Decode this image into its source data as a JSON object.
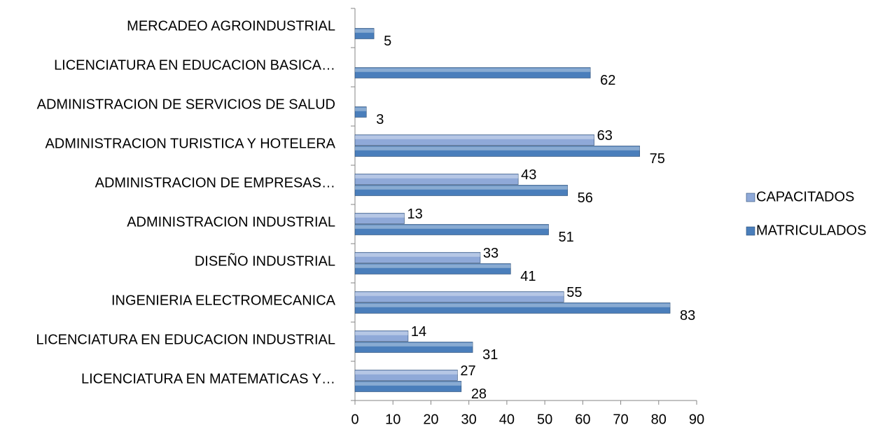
{
  "chart_data": {
    "type": "bar",
    "orientation": "horizontal",
    "categories": [
      "MERCADEO AGROINDUSTRIAL",
      "LICENCIATURA EN EDUCACION BASICA…",
      "ADMINISTRACION DE SERVICIOS DE SALUD",
      "ADMINISTRACION TURISTICA Y HOTELERA",
      "ADMINISTRACION DE EMPRESAS…",
      "ADMINISTRACION INDUSTRIAL",
      "DISEÑO INDUSTRIAL",
      "INGENIERIA ELECTROMECANICA",
      "LICENCIATURA EN EDUCACION INDUSTRIAL",
      "LICENCIATURA EN MATEMATICAS Y…"
    ],
    "series": [
      {
        "name": "CAPACITADOS",
        "color": "#8fa9d8",
        "values": [
          null,
          null,
          null,
          63,
          43,
          13,
          33,
          55,
          14,
          27
        ]
      },
      {
        "name": "MATRICULADOS",
        "color": "#4a7ebb",
        "values": [
          5,
          62,
          3,
          75,
          56,
          51,
          41,
          83,
          31,
          28
        ]
      }
    ],
    "xlim": [
      0,
      90
    ],
    "xticks": [
      0,
      10,
      20,
      30,
      40,
      50,
      60,
      70,
      80,
      90
    ],
    "legend": "right"
  }
}
